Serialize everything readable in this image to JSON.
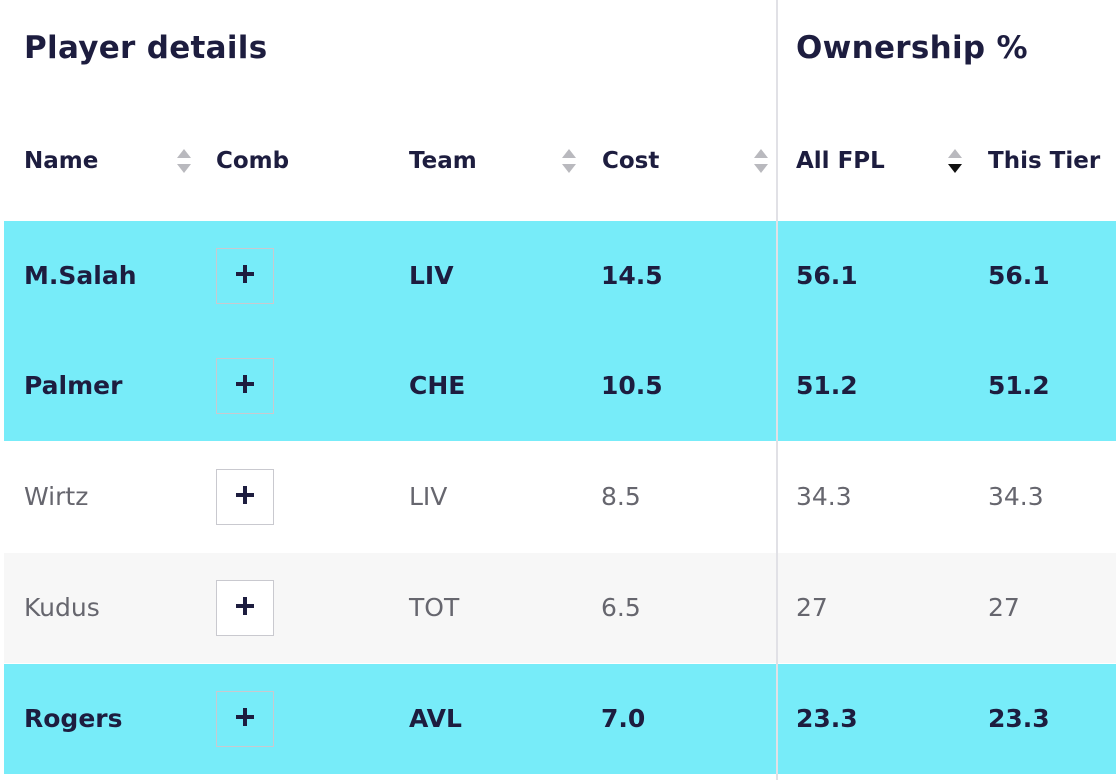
{
  "headers": {
    "player_details": "Player details",
    "ownership": "Ownership %"
  },
  "columns": {
    "name": "Name",
    "comb": "Comb",
    "team": "Team",
    "cost": "Cost",
    "all_fpl": "All FPL",
    "this_tier": "This Tier"
  },
  "sort": {
    "active_column": "all_fpl",
    "direction": "descending"
  },
  "colors": {
    "highlight": "#77ecf9",
    "text_dark": "#1d1d3f",
    "text_muted": "#66666e",
    "alt_row": "#f7f7f7"
  },
  "rows": [
    {
      "name": "M.Salah",
      "team": "LIV",
      "cost": "14.5",
      "all_fpl": "56.1",
      "this_tier": "56.1",
      "highlighted": true,
      "add_icon": "plus-icon"
    },
    {
      "name": "Palmer",
      "team": "CHE",
      "cost": "10.5",
      "all_fpl": "51.2",
      "this_tier": "51.2",
      "highlighted": true,
      "add_icon": "plus-icon"
    },
    {
      "name": "Wirtz",
      "team": "LIV",
      "cost": "8.5",
      "all_fpl": "34.3",
      "this_tier": "34.3",
      "highlighted": false,
      "add_icon": "plus-icon"
    },
    {
      "name": "Kudus",
      "team": "TOT",
      "cost": "6.5",
      "all_fpl": "27",
      "this_tier": "27",
      "highlighted": false,
      "add_icon": "plus-icon"
    },
    {
      "name": "Rogers",
      "team": "AVL",
      "cost": "7.0",
      "all_fpl": "23.3",
      "this_tier": "23.3",
      "highlighted": true,
      "add_icon": "plus-icon"
    }
  ]
}
